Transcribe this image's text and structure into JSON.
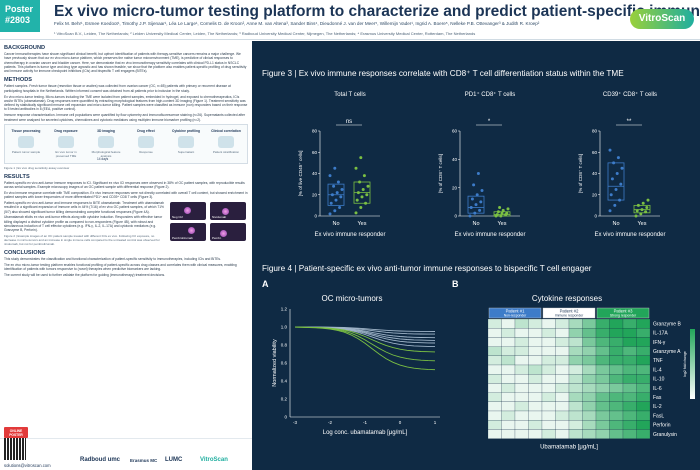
{
  "header": {
    "poster_label": "Poster",
    "poster_number": "#2803",
    "title": "Ex vivo micro-tumor testing platform to characterize and predict patient-specific immunotherapy responses",
    "authors": "Felix M. Behr¹, Esmee Koedoot¹, Timothy J.P. Sijenaar¹, Léa Le Large¹, Cornelis D. de Kroon², Anne M. van Altena³, Sander Bins⁴, Dieudonné J. van der Meer⁵, Willemijn Vader¹, Ingrid A. Boere⁵, Nelleke P.B. Ottevanger³ & Judith R. Kroep²",
    "affiliations": "¹ VitroScan B.V., Leiden, The Netherlands; ² Leiden University Medical Center, Leiden, The Netherlands; ³ Radboud University Medical Center, Nijmegen, The Netherlands; ⁴ Erasmus University Medical Center, Rotterdam, The Netherlands",
    "logo": "VitroScan"
  },
  "left": {
    "background_h": "BACKGROUND",
    "background_p": "Cancer immunotherapies have shown significant clinical benefit, but upfront identification of patients with therapy-sensitive cancers remains a major challenge. We have previously shown that our ex vivo micro-tumor platform, which preserves the native tumor microenvironment (TME), is predictive of clinical responses to chemotherapy in ovarian cancer and bladder cancer. Here, we demonstrate that ex vivo immunotherapy sensitivity correlates with clinical PD-L1 status in NSCLC patients. This platform is tumor type and drug type agnostic and has shown feasible, we show that the platform also enables patient-specific profiling of drug sensitivity and immune activity for immune checkpoint inhibitors (ICIs) and bispecific T cell engagers (BiTEs).",
    "methods_h": "METHODS",
    "methods_p1": "Patient samples. Fresh tumor tissue (resection tissue or ascites) was collected from ovarian cancer (OC, n=85) patients with primary or recurrent disease at participating hospitals in the Netherlands. Written informed consent was obtained from all patients prior to inclusion in the study.",
    "methods_p2": "Ex vivo micro-tumor testing. Micro-tumors including the TME were isolated from patient samples, embedded in hydrogel, and exposed to chemotherapeutics, ICIs and/or BiTEs (ubamatamab). Drug responses were quantified by extracting morphological features from high-content 3D imaging (Figure 1). Treatment sensitivity was defined by statistically significant immune cell expansion and micro-tumor killing. Patient samples were classified as immune (non) responders based on their response to 5 tested antibodies in 8 (EEA, positive control).",
    "methods_p3": "Immune response characterization. Immune cell populations were quantified by flow cytometry and immunofluorescence staining (n=26). Supernatants collected after treatment were analyzed for secreted cytokines, chemokines and cytotoxic mediators using multiplex immune biomarker profiling (n=2).",
    "diagram": {
      "steps": [
        {
          "label": "Tissue processing",
          "sub": "Patient tumor sample"
        },
        {
          "label": "Drug exposure",
          "sub": "Ex vivo tumor in preserved TME"
        },
        {
          "label": "3D imaging",
          "sub": "Morphological feature analysis"
        },
        {
          "label": "Drug effect",
          "sub": "Response"
        },
        {
          "label": "Cytokine profiling",
          "sub": "Supernatant"
        },
        {
          "label": "Clinical correlation",
          "sub": "Patient stratification"
        }
      ],
      "duration": "14 days",
      "note": "* Parallel complementary assays including immune cell, target protein, cytokine, mutanome and gene expression profiling",
      "caption": "Figure 1 | Ex vivo drug sensitivity assay overview"
    },
    "results_h": "RESULTS",
    "results_p1": "Patient-specific ex vivo anti-tumor immune responses to ICI. Significant ex vivo ICI responses were observed in 38% of OC patient samples, with reproducible results across serial samples. Example microscopy images of an OC patient sample with differential response (Figure 2).",
    "results_p2": "Ex vivo immune response correlate with TME composition. Ex vivo immune responses were not directly correlated with overall T cell content, but showed enrichment in patient samples with lower frequencies of more differentiated PD1⁺ and CD39⁺ CD8 T cells (Figure 3).",
    "results_p3": "Patient-specific ex vivo anti-tumor and immune responses to BiTE ubamatamab. Treatment with ubamatamab resulted in a significant expansion of immune cells in 44% (7/16) of ex vivo OC patient samples, of which 71% (5/7) also showed significant tumor killing demonstrating complete functional responses (Figure 4A).",
    "results_p4": "Ubamatamab elicits ex vivo anti-tumor effects along with cytokine induction. Responders with effective tumor killing displayed a distinct cytokine profile as compared to non-responders (Figure 4B), with robust and simultaneous induction of T cell effector cytokines (e.g. IFN-γ, IL-2, IL-17A) and cytotoxic mediators (e.g. Granzyme B, Perforin).",
    "fig2_caption": "Figure 2 | Example images of an OC patient sample treated with different ICIs ex vivo. Following ICI exposure, no decrease in micro-tumors and an increase in single immune cells compared to the untreated control was observed for nivolumab, but not for pembrolizumab.",
    "fig2_labels": [
      "Neg Ctrl",
      "Nivolumab",
      "Pembrolizumab",
      "Pembr."
    ],
    "conclusions_h": "CONCLUSIONS",
    "conclusions": [
      "This study demonstrates the classification and functional characterization of patient-specific sensitivity to immunotherapies, including ICIs and BiTEs.",
      "The ex vivo micro-tumor testing platform enables functional profiling of patient-specific across drug classes and correlates them with clinical measures, enabling identification of patients with tumors responsive to (novel) therapies when predictive biomarkers are lacking.",
      "The current study will be used to further validate the platform for guiding (immunotherapy) treatment decisions."
    ],
    "footer": {
      "online": "ONLINE POSTER",
      "email": "solutions@vitroscan.com",
      "logos": [
        "Radboud umc",
        "Erasmus MC",
        "LUMC",
        "VitroScan"
      ]
    }
  },
  "fig3": {
    "title": "Figure 3 | Ex vivo immune responses correlate with CD8⁺ T cell differentiation status within the TME",
    "xlabel": "Ex vivo immune responder",
    "panels": [
      {
        "title": "Total T cells",
        "ylabel": "[% of live CD45⁺ cells]",
        "sig": "ns",
        "ymax": 80,
        "ticks": [
          0,
          20,
          40,
          60,
          80
        ],
        "no": [
          2,
          5,
          8,
          12,
          15,
          18,
          20,
          22,
          25,
          28,
          32,
          38,
          45
        ],
        "yes": [
          3,
          8,
          12,
          15,
          18,
          20,
          22,
          25,
          28,
          32,
          38,
          45,
          55
        ],
        "no_box": [
          10,
          20,
          30
        ],
        "yes_box": [
          12,
          22,
          32
        ]
      },
      {
        "title": "PD1⁺ CD8⁺ T cells",
        "ylabel": "[% of CD8⁺ T cells]",
        "sig": "*",
        "ymax": 60,
        "ticks": [
          0,
          20,
          40,
          60
        ],
        "no": [
          0,
          2,
          4,
          6,
          8,
          10,
          12,
          15,
          18,
          22,
          30
        ],
        "yes": [
          0,
          0,
          1,
          1,
          2,
          2,
          3,
          4,
          5,
          6
        ],
        "no_box": [
          2,
          6,
          14
        ],
        "yes_box": [
          0,
          1,
          3
        ]
      },
      {
        "title": "CD39⁺ CD8⁺ T cells",
        "ylabel": "[% of CD8⁺ T cells]",
        "sig": "**",
        "ymax": 80,
        "ticks": [
          0,
          20,
          40,
          60,
          80
        ],
        "no": [
          5,
          10,
          15,
          20,
          25,
          30,
          35,
          40,
          45,
          50,
          55,
          62
        ],
        "yes": [
          0,
          2,
          4,
          5,
          6,
          8,
          10,
          12,
          15
        ],
        "no_box": [
          15,
          28,
          50
        ],
        "yes_box": [
          3,
          6,
          10
        ]
      }
    ],
    "x_categories": [
      "No",
      "Yes"
    ]
  },
  "fig4": {
    "title": "Figure 4 | Patient-specific ex vivo anti-tumor immune responses to bispecific T cell engager",
    "panelA": {
      "label": "A",
      "title": "OC micro-tumors",
      "ylabel": "Normalized viability",
      "xlabel": "Log conc. ubamatamab [μg/mL]",
      "yticks": [
        "0",
        "0.2",
        "0.4",
        "0.6",
        "0.8",
        "1.0",
        "1.2"
      ],
      "xticks": [
        "-3",
        "-2",
        "-1",
        "0",
        "1"
      ]
    },
    "panelB": {
      "label": "B",
      "title": "Cytokine responses",
      "xlabel": "Ubamatamab [μg/mL]",
      "groups": [
        {
          "name": "Patient #1",
          "status": "Non-responder",
          "color": "#3d7cc9"
        },
        {
          "name": "Patient #2",
          "status": "Immune responder",
          "color": "#ffffff"
        },
        {
          "name": "Patient #3",
          "status": "Strong responder",
          "color": "#22a55a"
        }
      ],
      "cytokines": [
        "Granzyme B",
        "IL-17A",
        "IFN-γ",
        "Granzyme A",
        "TNF",
        "IL-4",
        "IL-10",
        "IL-6",
        "Fas",
        "IL-2",
        "FasL",
        "Perforin",
        "Granulysin"
      ],
      "legend_label": "log2 fold change",
      "heat": [
        [
          0.2,
          0.1,
          0.3,
          0.2,
          0.1,
          0.2,
          0.4,
          0.6,
          0.9,
          1.0,
          0.9,
          1.0
        ],
        [
          0.1,
          0.2,
          0.1,
          0.1,
          0.2,
          0.1,
          0.5,
          0.7,
          0.9,
          1.0,
          1.0,
          0.9
        ],
        [
          0.1,
          0.1,
          0.2,
          0.1,
          0.1,
          0.2,
          0.3,
          0.6,
          0.8,
          0.9,
          1.0,
          1.0
        ],
        [
          0.3,
          0.2,
          0.2,
          0.1,
          0.1,
          0.1,
          0.4,
          0.5,
          0.7,
          0.9,
          0.8,
          0.9
        ],
        [
          0.2,
          0.3,
          0.1,
          0.1,
          0.2,
          0.2,
          0.5,
          0.6,
          0.8,
          0.9,
          0.9,
          1.0
        ],
        [
          0.1,
          0.1,
          0.2,
          0.3,
          0.2,
          0.1,
          0.2,
          0.4,
          0.6,
          0.7,
          0.8,
          0.8
        ],
        [
          0.2,
          0.1,
          0.1,
          0.2,
          0.1,
          0.1,
          0.3,
          0.5,
          0.6,
          0.8,
          0.9,
          0.9
        ],
        [
          0.1,
          0.2,
          0.1,
          0.1,
          0.1,
          0.2,
          0.3,
          0.4,
          0.5,
          0.6,
          0.7,
          0.8
        ],
        [
          0.2,
          0.1,
          0.1,
          0.1,
          0.2,
          0.1,
          0.4,
          0.5,
          0.7,
          0.8,
          0.8,
          0.9
        ],
        [
          0.1,
          0.1,
          0.2,
          0.1,
          0.1,
          0.1,
          0.3,
          0.5,
          0.7,
          0.8,
          0.9,
          1.0
        ],
        [
          0.1,
          0.2,
          0.1,
          0.1,
          0.1,
          0.2,
          0.3,
          0.4,
          0.6,
          0.7,
          0.8,
          0.9
        ],
        [
          0.2,
          0.1,
          0.1,
          0.2,
          0.1,
          0.1,
          0.2,
          0.4,
          0.6,
          0.8,
          0.9,
          1.0
        ],
        [
          0.1,
          0.1,
          0.1,
          0.1,
          0.2,
          0.1,
          0.3,
          0.4,
          0.5,
          0.7,
          0.8,
          0.9
        ]
      ]
    }
  },
  "colors": {
    "navy": "#0f2a44",
    "teal": "#22b3aa",
    "no_dot": "#3d7cc9",
    "yes_dot": "#7bc043"
  }
}
